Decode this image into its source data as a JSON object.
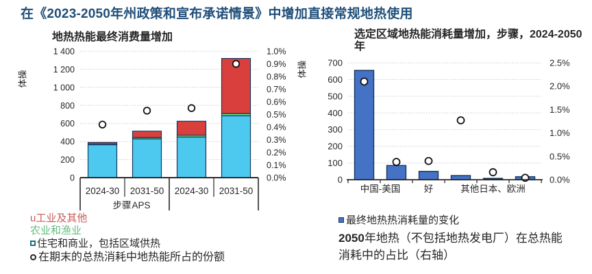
{
  "colors": {
    "title_blue": "#1F4E79",
    "residential_cyan": "#4DC9F0",
    "agriculture_green": "#5FD97D",
    "industry_red": "#D9403D",
    "bar_blue": "#4472C4",
    "bar_black": "#141414",
    "bar_stroke": "#17375E",
    "legend_red_text": "#C75B5B",
    "legend_green_text": "#63BD7E",
    "dot_stroke": "#111111"
  },
  "page": {
    "title": "在《2023-2050年州政策和宣布承诺情景》中增加直接常规地热使用"
  },
  "chart_data": [
    {
      "id": "left",
      "type": "bar",
      "title": "地热热能最终消费量增加",
      "ylabel": "体操",
      "categories": [
        "2024-30",
        "2031-50",
        "2024-30",
        "2031-50"
      ],
      "groups": [
        {
          "label": "步骤",
          "span": 2
        },
        {
          "label": "APS",
          "span": 2
        }
      ],
      "left_axis": {
        "max": 1400,
        "tick_values": [
          1400,
          1200,
          1000,
          800,
          600,
          400,
          200,
          0
        ],
        "tick_labels": [
          "1 400",
          "1 200",
          "1 000",
          "800",
          "600",
          "400",
          "200",
          "0"
        ]
      },
      "right_axis": {
        "max": 1.0,
        "tick_labels": [
          "1.0%",
          "0.9%",
          "0.8%",
          "0.7%",
          "0.6%",
          "0.5%",
          "0.4%",
          "0.3%",
          "0.2%",
          "0.1%",
          "0.0%"
        ]
      },
      "series": [
        {
          "name": "住宅和商业，包括区域供热",
          "color_key": "residential_cyan",
          "values": [
            365,
            430,
            450,
            685
          ]
        },
        {
          "name": "农业和渔业",
          "color_key": "agriculture_green",
          "values": [
            8,
            15,
            20,
            25
          ]
        },
        {
          "name": "工业及其他",
          "color_key": "industry_red",
          "values": [
            17,
            70,
            155,
            610
          ]
        }
      ],
      "dots": {
        "name": "在期末的总热消耗中地热能所占的份额",
        "percents": [
          0.42,
          0.53,
          0.55,
          0.9
        ]
      },
      "legend": [
        {
          "bullet": "u",
          "label": "工业及其他"
        },
        {
          "bullet": "",
          "label": "农业和渔业"
        },
        {
          "bullet": "square",
          "label": "住宅和商业，包括区域供热"
        },
        {
          "bullet": "circle",
          "label": "在期末的总热消耗中地热能所占的份额"
        }
      ]
    },
    {
      "id": "right",
      "type": "bar",
      "title_line1": "选定区域地热能消耗量增加，步骤，2024-2050",
      "title_line2": "年",
      "ylabel": "体操",
      "left_axis": {
        "max": 700,
        "tick_values": [
          700,
          600,
          500,
          400,
          300,
          200,
          100,
          0
        ],
        "tick_labels": [
          "700",
          "600",
          "500",
          "400",
          "300",
          "200",
          "100",
          "0"
        ]
      },
      "right_axis": {
        "max": 2.5,
        "tick_labels": [
          "2.5%",
          "2.0%",
          "1.5%",
          "1.0%",
          "0.5%",
          "0.0%"
        ]
      },
      "bars": {
        "values": [
          655,
          85,
          50,
          25,
          8,
          18
        ],
        "color_keys": [
          "bar_blue",
          "bar_blue",
          "bar_blue",
          "bar_blue",
          "bar_black",
          "bar_blue"
        ]
      },
      "dots": {
        "percents": [
          2.1,
          0.38,
          0.4,
          1.27,
          0.16,
          0.04
        ]
      },
      "xlabels": [
        {
          "text": "中国-美国",
          "between": [
            0,
            1
          ]
        },
        {
          "text": "好",
          "between": [
            2,
            2
          ]
        },
        {
          "text": "其他日本、欧洲",
          "between": [
            3,
            5
          ]
        }
      ],
      "legend_label": "最终地热热消耗量的变化",
      "caption_strong": "2050",
      "caption_rest": "年地热（不包括地热发电厂）在总热能消耗中的占比（右轴）"
    }
  ]
}
